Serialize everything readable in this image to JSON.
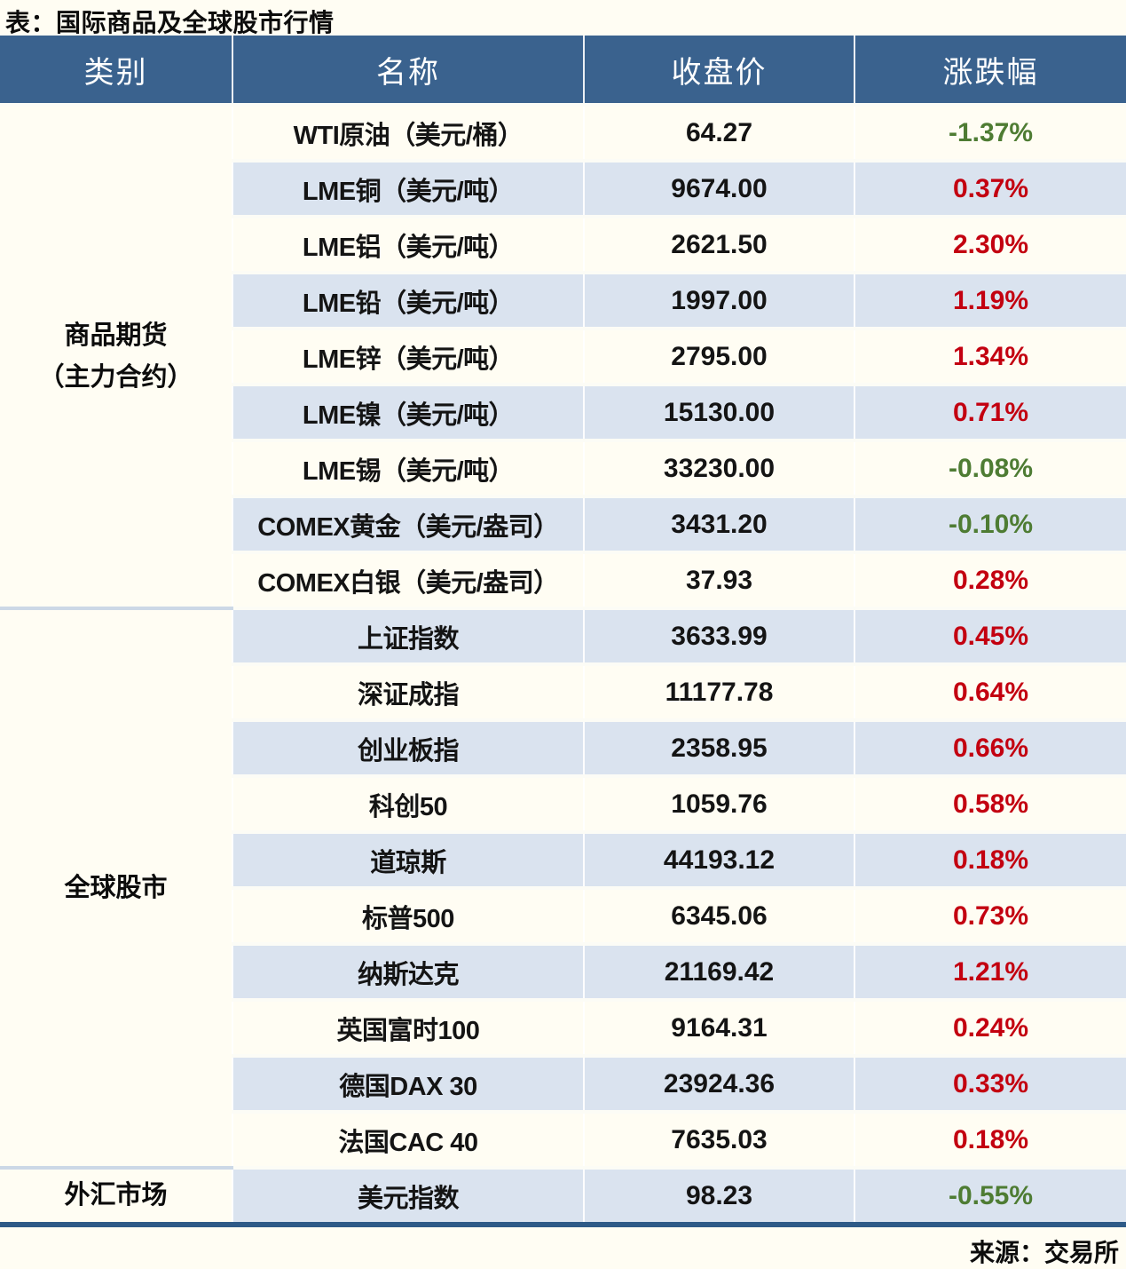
{
  "title": "表：国际商品及全球股市行情",
  "source": "来源：交易所",
  "colors": {
    "header_bg": "#3a628e",
    "row_alt_bg": "#dae3ef",
    "page_bg": "#fffdf3",
    "positive_red": "#c30010",
    "negative_green": "#4e7c33",
    "table_bottom_border": "#2e5a87"
  },
  "chart_data": {
    "type": "table",
    "columns": [
      "类别",
      "名称",
      "收盘价",
      "涨跌幅"
    ],
    "sections": [
      {
        "category": [
          "商品期货",
          "（主力合约）"
        ],
        "rows": [
          {
            "name": "WTI原油（美元/桶）",
            "close": "64.27",
            "change": "-1.37%"
          },
          {
            "name": "LME铜（美元/吨）",
            "close": "9674.00",
            "change": "0.37%"
          },
          {
            "name": "LME铝（美元/吨）",
            "close": "2621.50",
            "change": "2.30%"
          },
          {
            "name": "LME铅（美元/吨）",
            "close": "1997.00",
            "change": "1.19%"
          },
          {
            "name": "LME锌（美元/吨）",
            "close": "2795.00",
            "change": "1.34%"
          },
          {
            "name": "LME镍（美元/吨）",
            "close": "15130.00",
            "change": "0.71%"
          },
          {
            "name": "LME锡（美元/吨）",
            "close": "33230.00",
            "change": "-0.08%"
          },
          {
            "name": "COMEX黄金（美元/盎司）",
            "close": "3431.20",
            "change": "-0.10%"
          },
          {
            "name": "COMEX白银（美元/盎司）",
            "close": "37.93",
            "change": "0.28%"
          }
        ]
      },
      {
        "category": [
          "全球股市"
        ],
        "rows": [
          {
            "name": "上证指数",
            "close": "3633.99",
            "change": "0.45%"
          },
          {
            "name": "深证成指",
            "close": "11177.78",
            "change": "0.64%"
          },
          {
            "name": "创业板指",
            "close": "2358.95",
            "change": "0.66%"
          },
          {
            "name": "科创50",
            "close": "1059.76",
            "change": "0.58%"
          },
          {
            "name": "道琼斯",
            "close": "44193.12",
            "change": "0.18%"
          },
          {
            "name": "标普500",
            "close": "6345.06",
            "change": "0.73%"
          },
          {
            "name": "纳斯达克",
            "close": "21169.42",
            "change": "1.21%"
          },
          {
            "name": "英国富时100",
            "close": "9164.31",
            "change": "0.24%"
          },
          {
            "name": "德国DAX 30",
            "close": "23924.36",
            "change": "0.33%"
          },
          {
            "name": "法国CAC 40",
            "close": "7635.03",
            "change": "0.18%"
          }
        ]
      },
      {
        "category": [
          "外汇市场"
        ],
        "rows": [
          {
            "name": "美元指数",
            "close": "98.23",
            "change": "-0.55%"
          }
        ]
      }
    ]
  }
}
